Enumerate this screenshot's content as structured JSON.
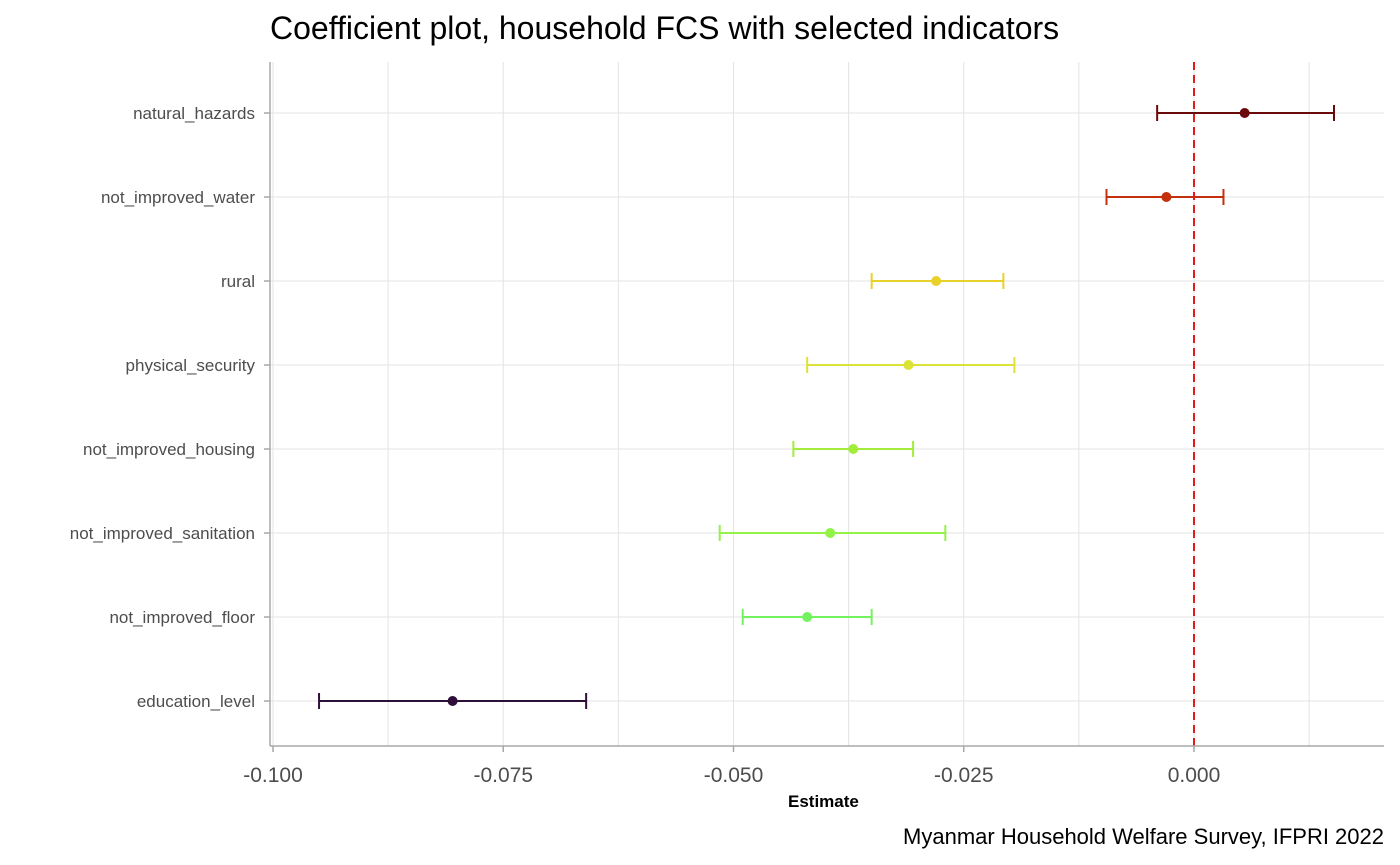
{
  "chart_data": {
    "type": "scatter",
    "subtype": "coefficient-plot-with-error-bars",
    "title": "Coefficient plot, household FCS with selected indicators",
    "xlabel": "Estimate",
    "ylabel": "",
    "caption": "Myanmar Household Welfare Survey, IFPRI 2022",
    "xlim": [
      -0.1,
      0.02
    ],
    "xticks": [
      -0.1,
      -0.075,
      -0.05,
      -0.025,
      0.0
    ],
    "xtick_labels": [
      "-0.100",
      "-0.075",
      "-0.050",
      "-0.025",
      "0.000"
    ],
    "grid": true,
    "legend": "none",
    "reference_line": {
      "x": 0.0,
      "style": "dashed",
      "color": "#e31a1c"
    },
    "categories": [
      "natural_hazards",
      "not_improved_water",
      "rural",
      "physical_security",
      "not_improved_housing",
      "not_improved_sanitation",
      "not_improved_floor",
      "education_level"
    ],
    "estimates": [
      0.0055,
      -0.003,
      -0.028,
      -0.031,
      -0.037,
      -0.0395,
      -0.042,
      -0.0805
    ],
    "lower": [
      -0.004,
      -0.0095,
      -0.035,
      -0.042,
      -0.0435,
      -0.0515,
      -0.049,
      -0.095
    ],
    "upper": [
      0.0152,
      0.0032,
      -0.0207,
      -0.0195,
      -0.0305,
      -0.027,
      -0.035,
      -0.066
    ],
    "colors": [
      "#6b0a0a",
      "#c4300c",
      "#e9d12a",
      "#dde236",
      "#a2ed3a",
      "#93f247",
      "#72f25c",
      "#2d0f38"
    ]
  }
}
